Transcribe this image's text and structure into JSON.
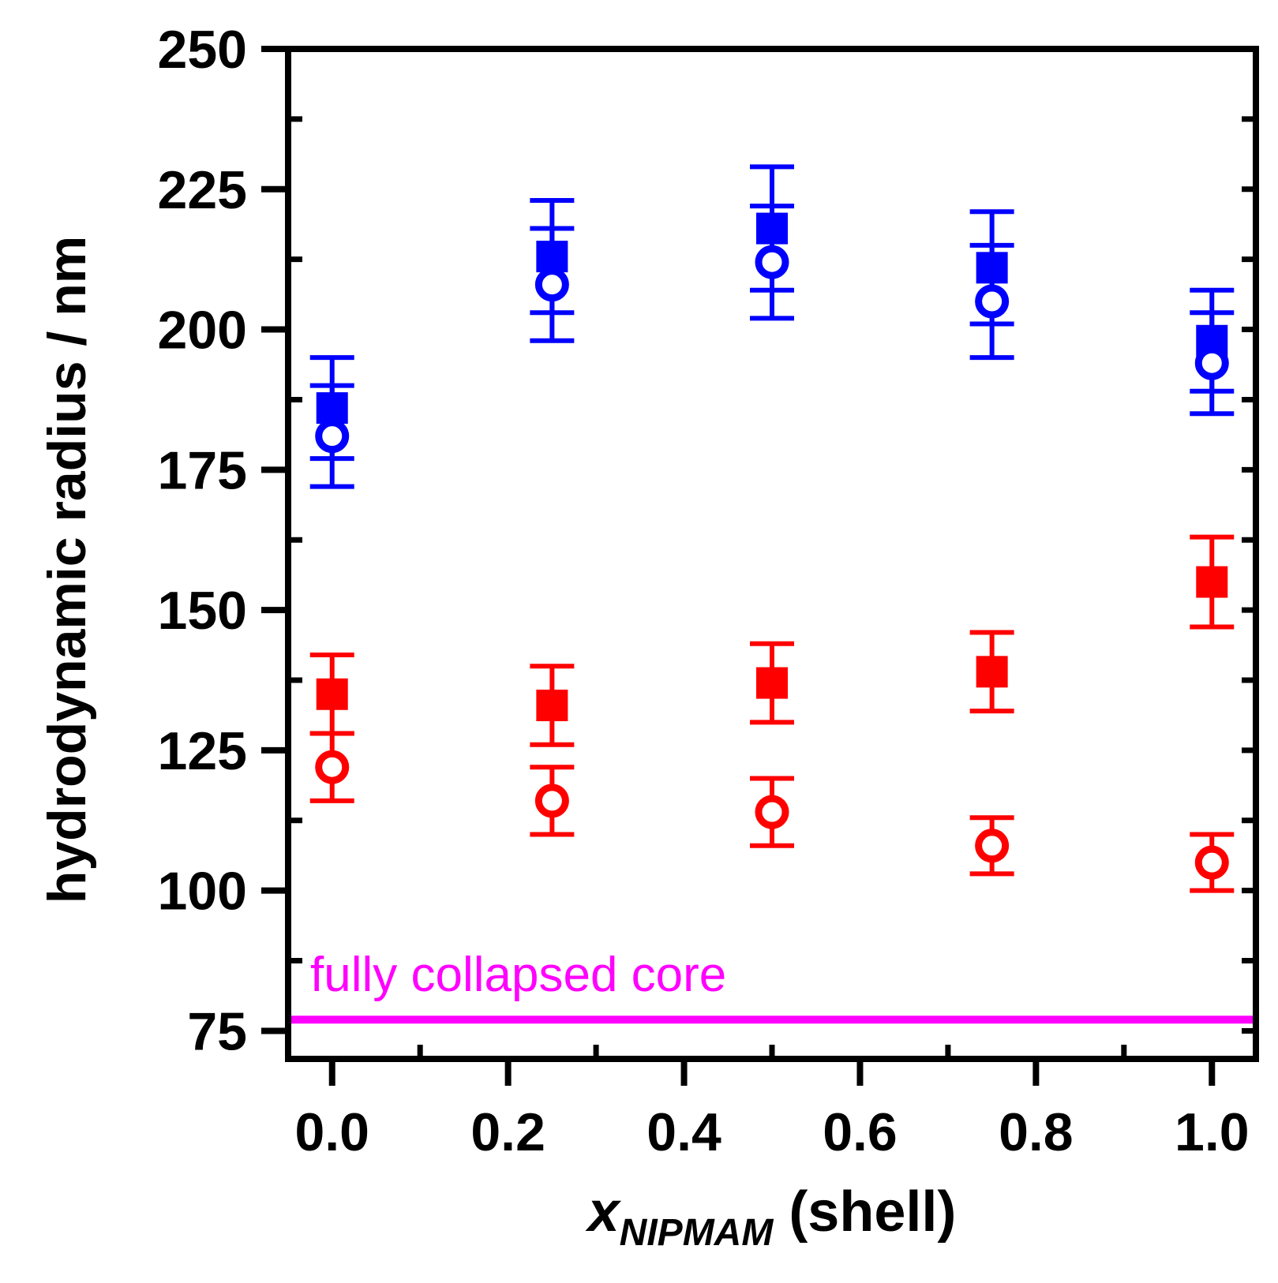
{
  "chart_data": {
    "type": "scatter",
    "title": "",
    "xlabel_symbol": "x",
    "xlabel_subscript": "NIPMAM",
    "xlabel_suffix": "(shell)",
    "ylabel": "hydrodynamic radius / nm",
    "xlim": [
      -0.05,
      1.05
    ],
    "ylim": [
      70,
      250
    ],
    "xticks": [
      0.0,
      0.2,
      0.4,
      0.6,
      0.8,
      1.0
    ],
    "xtick_labels": [
      "0.0",
      "0.2",
      "0.4",
      "0.6",
      "0.8",
      "1.0"
    ],
    "yticks": [
      75,
      100,
      125,
      150,
      175,
      200,
      225,
      250
    ],
    "ytick_labels": [
      "75",
      "100",
      "125",
      "150",
      "175",
      "200",
      "225",
      "250"
    ],
    "x": [
      0.0,
      0.25,
      0.5,
      0.75,
      1.0
    ],
    "series": [
      {
        "name": "blue filled squares",
        "marker": "square",
        "filled": true,
        "color": "#0000ff",
        "values": [
          186,
          213,
          218,
          211,
          198
        ],
        "errors": [
          9,
          10,
          11,
          10,
          9
        ]
      },
      {
        "name": "blue open circles",
        "marker": "circle",
        "filled": false,
        "color": "#0000ff",
        "values": [
          181,
          208,
          212,
          205,
          194
        ],
        "errors": [
          9,
          10,
          10,
          10,
          9
        ]
      },
      {
        "name": "red filled squares",
        "marker": "square",
        "filled": true,
        "color": "#ff0000",
        "values": [
          135,
          133,
          137,
          139,
          155
        ],
        "errors": [
          7,
          7,
          7,
          7,
          8
        ]
      },
      {
        "name": "red open circles",
        "marker": "circle",
        "filled": false,
        "color": "#ff0000",
        "values": [
          122,
          116,
          114,
          108,
          105
        ],
        "errors": [
          6,
          6,
          6,
          5,
          5
        ]
      }
    ],
    "reference_line": {
      "label": "fully collapsed core",
      "value": 77,
      "color": "#ff00ff"
    }
  }
}
